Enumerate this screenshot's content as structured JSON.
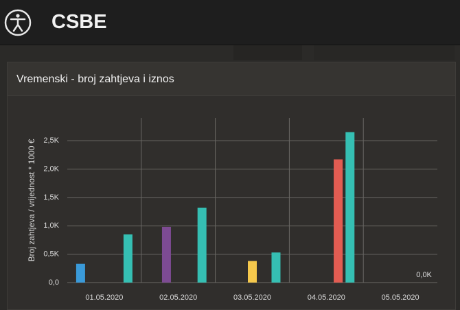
{
  "header": {
    "title": "CSBE"
  },
  "chart_data": {
    "type": "bar",
    "title": "Vremenski - broj zahtjeva i iznos",
    "y_label": "Broj zahtjeva / vrijednost * 1000 €",
    "categories": [
      "01.05.2020",
      "02.05.2020",
      "03.05.2020",
      "04.05.2020",
      "05.05.2020"
    ],
    "series": [
      {
        "color": "#3a9ad9",
        "values": [
          330,
          null,
          null,
          null,
          null
        ]
      },
      {
        "color": "#7d4b93",
        "values": [
          null,
          980,
          null,
          null,
          null
        ]
      },
      {
        "color": "#f5c84c",
        "values": [
          null,
          null,
          380,
          null,
          null
        ]
      },
      {
        "color": "#e25c52",
        "values": [
          null,
          null,
          null,
          2170,
          null
        ]
      },
      {
        "color": "#35bfb3",
        "values": [
          850,
          1320,
          530,
          2650,
          0
        ],
        "value_labels": [
          null,
          null,
          null,
          null,
          "0,0K"
        ]
      }
    ],
    "ylim": [
      0,
      2900
    ],
    "yticks": [
      {
        "value": 0,
        "label": "0,0"
      },
      {
        "value": 500,
        "label": "0,5K"
      },
      {
        "value": 1000,
        "label": "1,0K"
      },
      {
        "value": 1500,
        "label": "1,5K"
      },
      {
        "value": 2000,
        "label": "2,0K"
      },
      {
        "value": 2500,
        "label": "2,5K"
      }
    ],
    "grid": true
  }
}
